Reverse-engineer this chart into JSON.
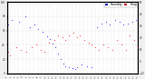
{
  "background_color": "#f0f0f0",
  "plot_bg_color": "#ffffff",
  "grid_color": "#bbbbbb",
  "humidity_color": "#0000ff",
  "temp_color": "#ff0000",
  "legend_box_humidity": "#0000cc",
  "legend_box_temp": "#cc0000",
  "legend_humidity_label": "Humidity",
  "legend_temp_label": "Temp",
  "figsize": [
    1.6,
    0.87
  ],
  "dpi": 100,
  "dot_size": 1.2,
  "humidity_points_x": [
    2,
    8,
    18,
    28,
    35,
    42,
    48,
    55,
    62,
    66,
    70,
    74,
    78,
    82,
    86,
    90,
    95,
    100,
    104,
    108,
    115,
    122,
    130,
    138,
    145,
    152,
    158,
    165,
    172,
    178,
    185,
    192,
    198
  ],
  "humidity_points_y": [
    68,
    75,
    72,
    80,
    65,
    68,
    62,
    58,
    52,
    48,
    42,
    36,
    28,
    20,
    14,
    10,
    8,
    7,
    6,
    8,
    12,
    10,
    8,
    65,
    70,
    72,
    68,
    75,
    72,
    68,
    70,
    72,
    75
  ],
  "temp_points_x": [
    2,
    5,
    15,
    22,
    30,
    38,
    45,
    52,
    58,
    65,
    72,
    78,
    85,
    90,
    95,
    102,
    108,
    112,
    118,
    125,
    130,
    135,
    140,
    148,
    155,
    162,
    168,
    175,
    182,
    188,
    195,
    200
  ],
  "temp_points_y": [
    8,
    5,
    12,
    10,
    8,
    12,
    14,
    10,
    8,
    16,
    18,
    22,
    20,
    18,
    22,
    24,
    20,
    22,
    18,
    16,
    14,
    12,
    10,
    14,
    12,
    10,
    18,
    14,
    10,
    22,
    18,
    12
  ],
  "xlim": [
    0,
    200
  ],
  "ylim_humidity": [
    0,
    100
  ],
  "ylim_temp": [
    -10,
    50
  ],
  "yticks_left": [
    0,
    20,
    40,
    60,
    80,
    100
  ],
  "yticks_right": [
    -10,
    0,
    10,
    20,
    30,
    40,
    50
  ],
  "n_xticks": 35
}
